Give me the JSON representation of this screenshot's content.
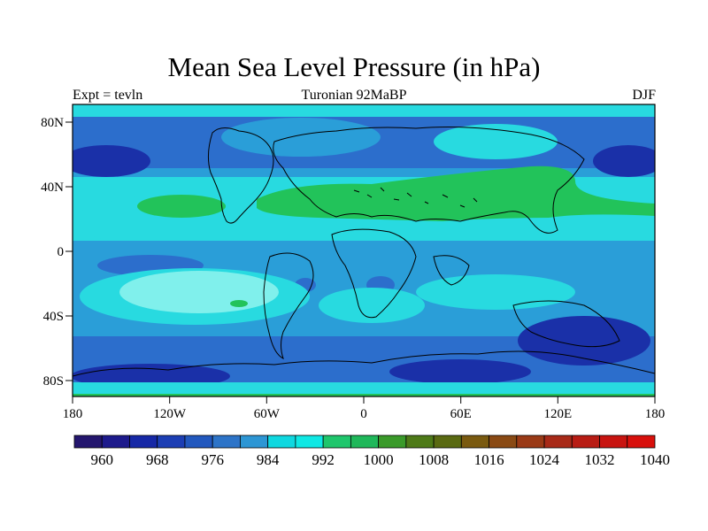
{
  "title": "Mean Sea Level Pressure (in hPa)",
  "subtitle_left": "Expt = tevln",
  "subtitle_center": "Turonian  92MaBP",
  "subtitle_right": "DJF",
  "lon_ticks": [
    "180",
    "120W",
    "60W",
    "0",
    "60E",
    "120E",
    "180"
  ],
  "lat_ticks": [
    "80N",
    "40N",
    "0",
    "40S",
    "80S"
  ],
  "colorbar": {
    "labels": [
      "960",
      "968",
      "976",
      "984",
      "992",
      "1000",
      "1008",
      "1016",
      "1024",
      "1032",
      "1040"
    ],
    "colors": [
      "#24166e",
      "#1d1a8c",
      "#1628a6",
      "#1c3eb4",
      "#2258be",
      "#2d74c8",
      "#2d96d4",
      "#0fd8e0",
      "#0fe8e4",
      "#1fc66c",
      "#1fb85a",
      "#3a9a2a",
      "#4e7a18",
      "#5a6a12",
      "#7a5a10",
      "#8a4a14",
      "#9a3a16",
      "#a82a18",
      "#b81c14",
      "#c81410",
      "#d8100c"
    ]
  },
  "palette": {
    "deep": "#1a30a8",
    "blue": "#2c6ecc",
    "mid": "#2a9ed8",
    "cyan": "#28dae0",
    "light": "#80f0ec",
    "green": "#22c35a",
    "land_line": "#000000"
  }
}
